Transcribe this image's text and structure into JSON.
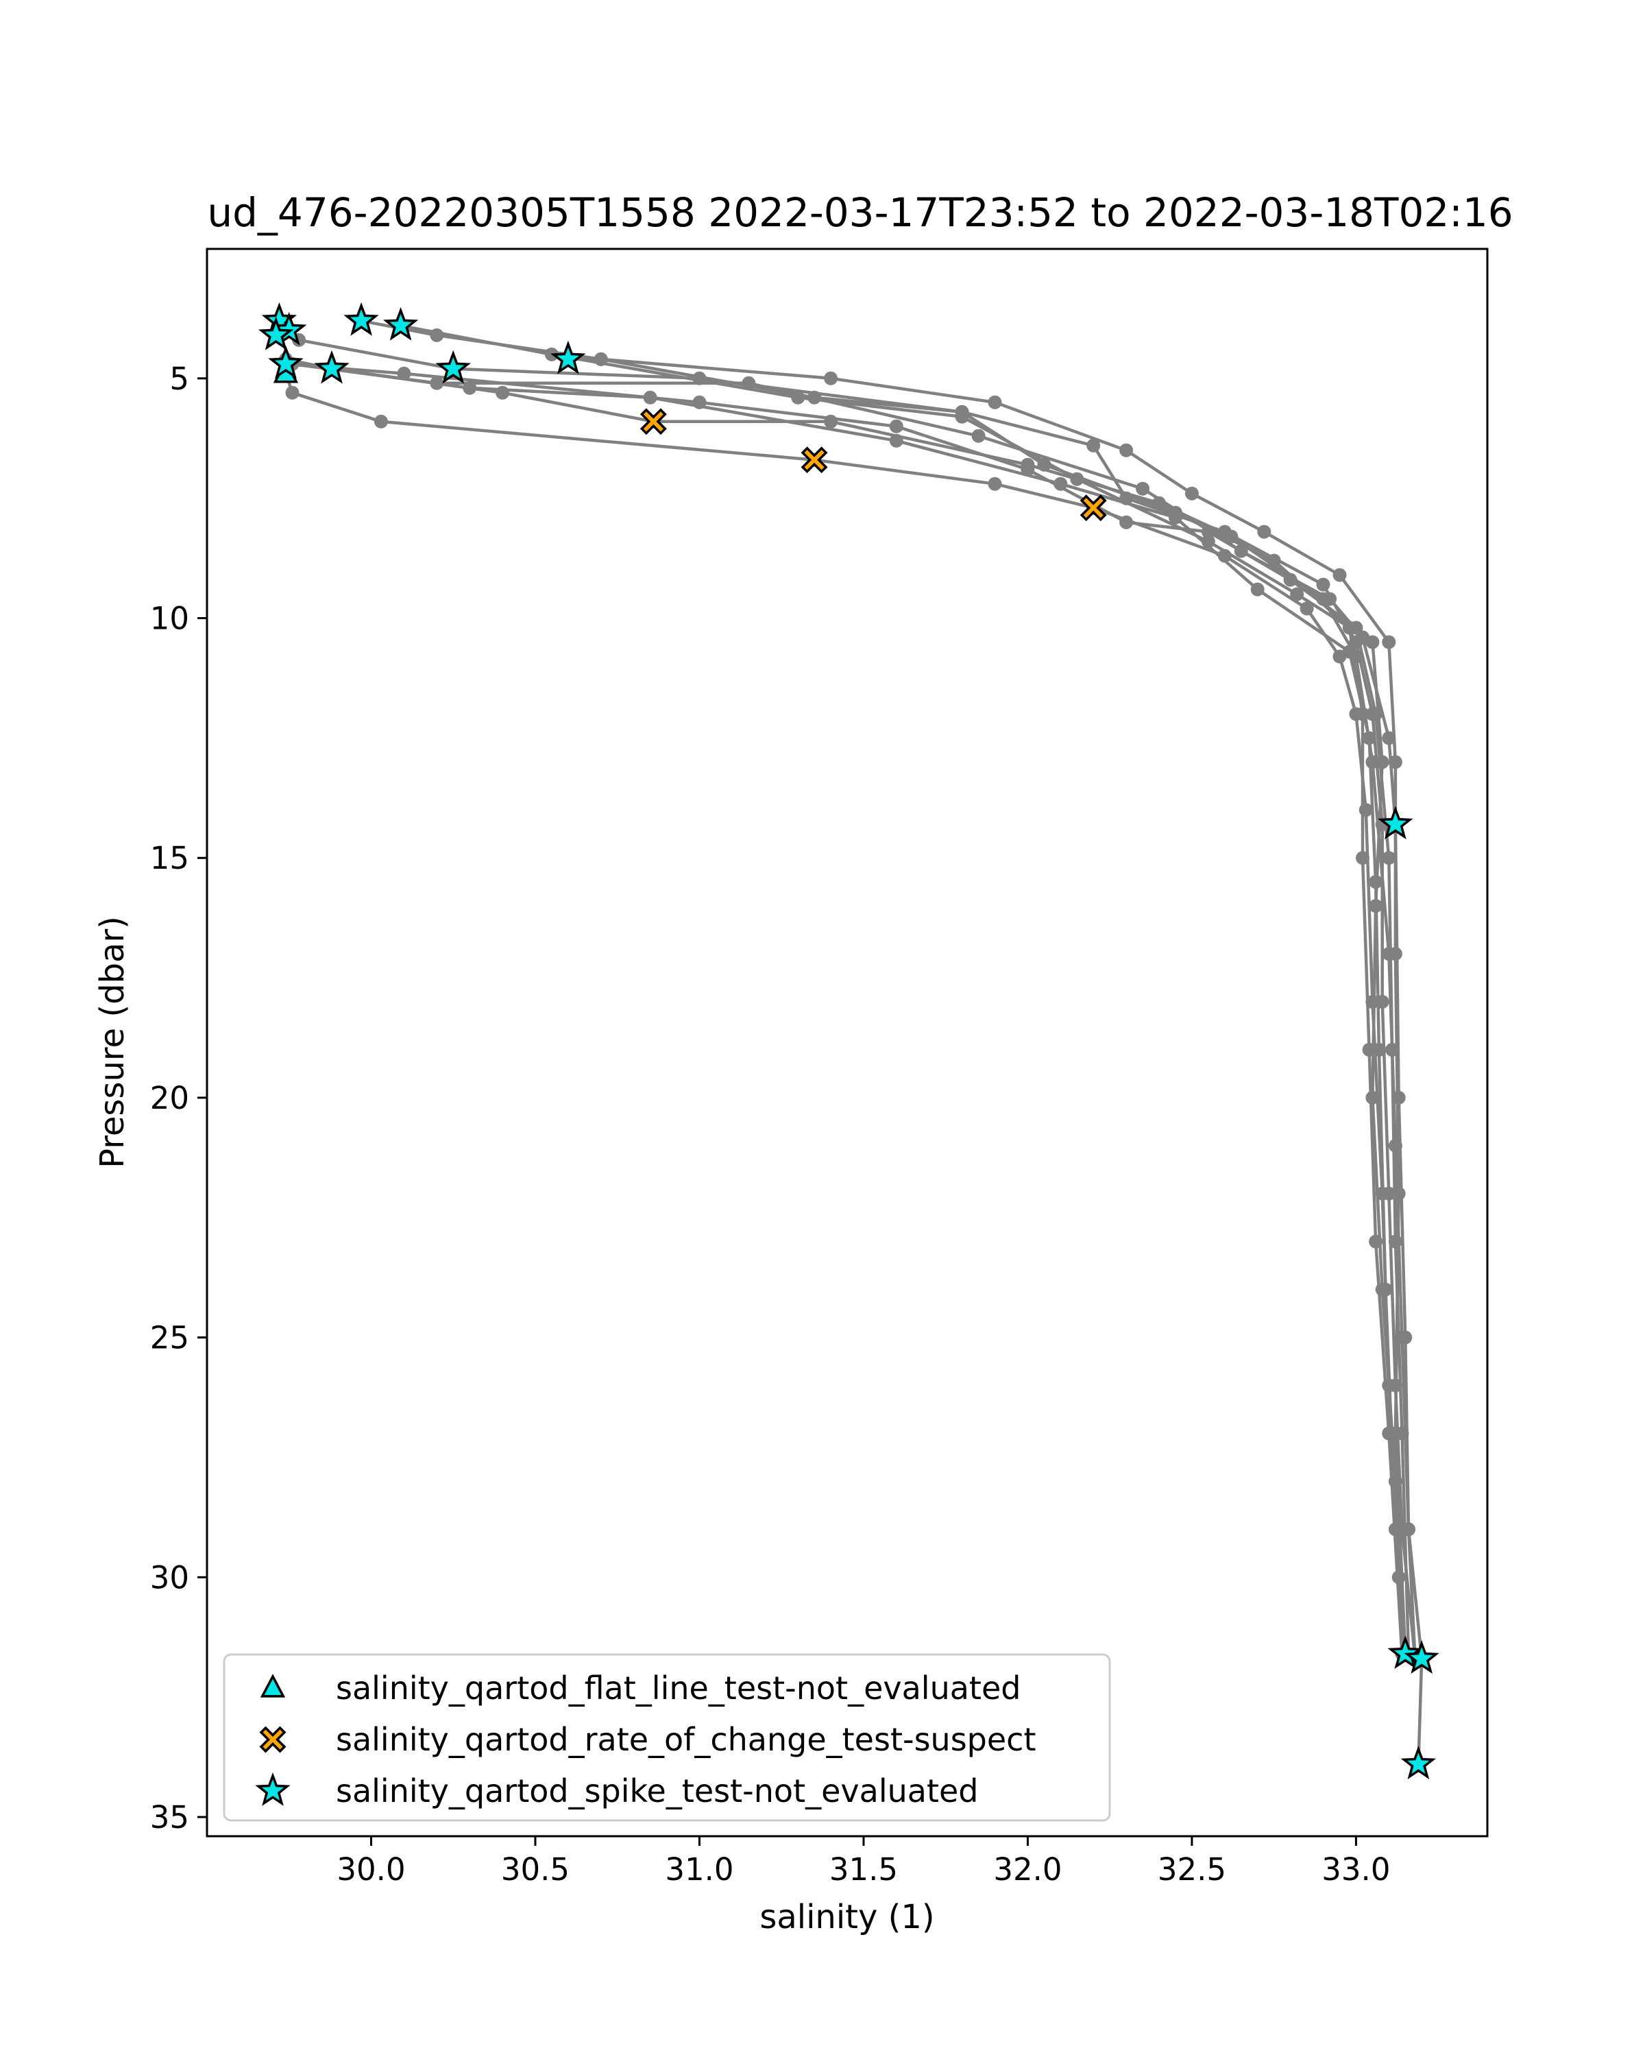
{
  "chart_data": {
    "type": "scatter",
    "title": "ud_476-20220305T1558 2022-03-17T23:52 to 2022-03-18T02:16",
    "xlabel": "salinity (1)",
    "ylabel": "Pressure (dbar)",
    "xlim": [
      29.5,
      33.4
    ],
    "ylim": [
      35.4,
      2.3
    ],
    "y_inverted": true,
    "x_ticks": [
      30.0,
      30.5,
      31.0,
      31.5,
      32.0,
      32.5,
      33.0
    ],
    "x_tick_labels": [
      "30.0",
      "30.5",
      "31.0",
      "31.5",
      "32.0",
      "32.5",
      "33.0"
    ],
    "y_ticks": [
      5,
      10,
      15,
      20,
      25,
      30,
      35
    ],
    "y_tick_labels": [
      "5",
      "10",
      "15",
      "20",
      "25",
      "30",
      "35"
    ],
    "grid": false,
    "legend_position": "lower-left",
    "line_color": "#808080",
    "profiles": [
      [
        [
          29.72,
          3.8
        ],
        [
          29.78,
          4.2
        ],
        [
          30.25,
          4.8
        ],
        [
          31.0,
          5.0
        ],
        [
          31.8,
          5.7
        ],
        [
          32.2,
          6.4
        ],
        [
          32.3,
          7.5
        ],
        [
          32.6,
          8.2
        ],
        [
          32.9,
          9.3
        ],
        [
          33.0,
          10.5
        ],
        [
          33.05,
          12.0
        ],
        [
          33.08,
          14.3
        ],
        [
          33.08,
          18.0
        ],
        [
          33.1,
          22.0
        ],
        [
          33.12,
          26.0
        ],
        [
          33.14,
          29.0
        ],
        [
          33.18,
          31.7
        ]
      ],
      [
        [
          29.72,
          4.1
        ],
        [
          29.76,
          4.7
        ],
        [
          30.2,
          5.1
        ],
        [
          31.15,
          5.1
        ],
        [
          31.85,
          6.2
        ],
        [
          32.35,
          7.3
        ],
        [
          32.65,
          8.6
        ],
        [
          32.92,
          9.6
        ],
        [
          33.02,
          10.4
        ],
        [
          33.1,
          12.5
        ],
        [
          33.12,
          14.3
        ],
        [
          33.13,
          20.0
        ],
        [
          33.15,
          25.0
        ],
        [
          33.16,
          29.0
        ],
        [
          33.2,
          31.7
        ],
        [
          33.19,
          33.9
        ]
      ],
      [
        [
          29.97,
          3.8
        ],
        [
          30.2,
          4.1
        ],
        [
          30.7,
          4.6
        ],
        [
          31.4,
          5.0
        ],
        [
          31.9,
          5.5
        ],
        [
          32.3,
          6.5
        ],
        [
          32.5,
          7.4
        ],
        [
          32.72,
          8.2
        ],
        [
          32.95,
          9.1
        ],
        [
          33.1,
          10.5
        ],
        [
          33.12,
          13.0
        ],
        [
          33.12,
          17.0
        ],
        [
          33.13,
          22.0
        ],
        [
          33.12,
          27.0
        ],
        [
          33.15,
          31.6
        ]
      ],
      [
        [
          30.09,
          3.9
        ],
        [
          30.55,
          4.5
        ],
        [
          31.3,
          5.4
        ],
        [
          31.8,
          5.8
        ],
        [
          32.15,
          7.1
        ],
        [
          32.55,
          8.4
        ],
        [
          32.82,
          9.5
        ],
        [
          33.05,
          10.5
        ],
        [
          33.08,
          13.0
        ],
        [
          33.06,
          16.0
        ],
        [
          33.05,
          20.0
        ],
        [
          33.08,
          24.0
        ],
        [
          33.12,
          28.0
        ],
        [
          33.14,
          31.6
        ]
      ],
      [
        [
          30.6,
          4.6
        ],
        [
          30.7,
          4.6
        ],
        [
          31.35,
          5.4
        ],
        [
          31.8,
          5.7
        ],
        [
          32.05,
          6.8
        ],
        [
          32.45,
          7.8
        ],
        [
          32.75,
          8.8
        ],
        [
          32.98,
          10.2
        ],
        [
          33.02,
          12.0
        ],
        [
          33.02,
          15.0
        ],
        [
          33.04,
          19.0
        ],
        [
          33.06,
          23.0
        ],
        [
          33.1,
          27.0
        ],
        [
          33.14,
          31.6
        ]
      ],
      [
        [
          29.74,
          4.6
        ],
        [
          29.88,
          4.8
        ],
        [
          30.4,
          5.3
        ],
        [
          30.86,
          5.9
        ],
        [
          31.4,
          5.9
        ],
        [
          32.0,
          6.8
        ],
        [
          32.4,
          7.6
        ],
        [
          32.62,
          8.3
        ],
        [
          32.9,
          9.6
        ],
        [
          33.0,
          10.8
        ],
        [
          33.05,
          13.0
        ],
        [
          33.1,
          17.0
        ],
        [
          33.12,
          21.0
        ],
        [
          33.14,
          25.0
        ],
        [
          33.16,
          29.0
        ],
        [
          33.18,
          31.7
        ]
      ],
      [
        [
          29.74,
          4.9
        ],
        [
          29.76,
          5.3
        ],
        [
          30.03,
          5.9
        ],
        [
          31.35,
          6.7
        ],
        [
          31.9,
          7.2
        ],
        [
          32.2,
          7.7
        ],
        [
          32.6,
          8.7
        ],
        [
          32.85,
          9.8
        ],
        [
          32.95,
          10.8
        ],
        [
          33.0,
          12.0
        ],
        [
          33.03,
          14.0
        ],
        [
          33.05,
          18.0
        ],
        [
          33.08,
          22.0
        ],
        [
          33.1,
          26.0
        ],
        [
          33.13,
          30.0
        ],
        [
          33.15,
          31.6
        ]
      ],
      [
        [
          29.88,
          4.8
        ],
        [
          30.3,
          5.2
        ],
        [
          30.85,
          5.4
        ],
        [
          31.6,
          6.3
        ],
        [
          32.1,
          7.2
        ],
        [
          32.45,
          7.9
        ],
        [
          32.7,
          9.4
        ],
        [
          32.98,
          10.7
        ],
        [
          33.04,
          12.5
        ],
        [
          33.06,
          15.5
        ],
        [
          33.07,
          19.0
        ],
        [
          33.09,
          24.0
        ],
        [
          33.12,
          29.0
        ],
        [
          33.14,
          31.6
        ]
      ],
      [
        [
          29.74,
          4.7
        ],
        [
          30.1,
          4.9
        ],
        [
          31.0,
          5.5
        ],
        [
          31.6,
          6.0
        ],
        [
          32.0,
          6.9
        ],
        [
          32.3,
          8.0
        ],
        [
          32.55,
          8.2
        ],
        [
          32.8,
          9.2
        ],
        [
          33.0,
          10.2
        ],
        [
          33.06,
          12.0
        ],
        [
          33.1,
          15.0
        ],
        [
          33.11,
          19.0
        ],
        [
          33.12,
          23.0
        ],
        [
          33.14,
          27.0
        ],
        [
          33.16,
          31.6
        ]
      ]
    ],
    "flags": {
      "flat_line_not_evaluated": [
        [
          29.74,
          4.9
        ]
      ],
      "rate_of_change_suspect": [
        [
          30.86,
          5.9
        ],
        [
          31.35,
          6.7
        ],
        [
          32.2,
          7.7
        ]
      ],
      "spike_not_evaluated": [
        [
          29.72,
          3.8
        ],
        [
          29.75,
          4.0
        ],
        [
          29.71,
          4.1
        ],
        [
          29.97,
          3.8
        ],
        [
          30.09,
          3.9
        ],
        [
          29.74,
          4.7
        ],
        [
          29.88,
          4.8
        ],
        [
          30.25,
          4.8
        ],
        [
          30.6,
          4.6
        ],
        [
          33.12,
          14.3
        ],
        [
          33.15,
          31.6
        ],
        [
          33.2,
          31.7
        ],
        [
          33.19,
          33.9
        ]
      ]
    },
    "legend": [
      {
        "label": "salinity_qartod_flat_line_test-not_evaluated",
        "marker": "triangle",
        "fill": "#00e5e5",
        "key": "flat_line_not_evaluated"
      },
      {
        "label": "salinity_qartod_rate_of_change_test-suspect",
        "marker": "x",
        "fill": "#ffa500",
        "key": "rate_of_change_suspect"
      },
      {
        "label": "salinity_qartod_spike_test-not_evaluated",
        "marker": "star",
        "fill": "#00e5e5",
        "key": "spike_not_evaluated"
      }
    ]
  }
}
